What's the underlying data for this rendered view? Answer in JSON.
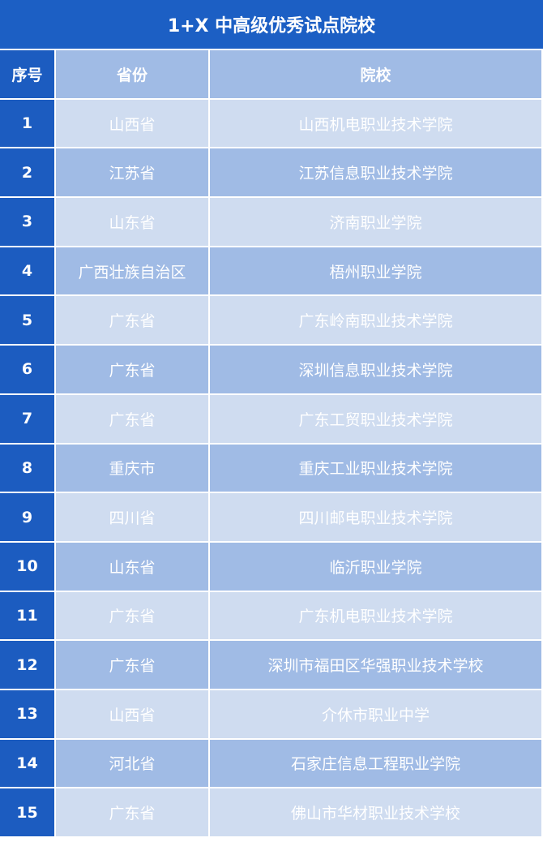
{
  "title": "1+X 中高级优秀试点院校",
  "headers": {
    "index": "序号",
    "province": "省份",
    "school": "院校"
  },
  "colors": {
    "title_bg": "#1c5fc4",
    "index_bg": "#1c5cc0",
    "row_dark": "#a0bbe5",
    "row_light": "#cfdcf0",
    "text": "#ffffff"
  },
  "rows": [
    {
      "index": "1",
      "province": "山西省",
      "school": "山西机电职业技术学院"
    },
    {
      "index": "2",
      "province": "江苏省",
      "school": "江苏信息职业技术学院"
    },
    {
      "index": "3",
      "province": "山东省",
      "school": "济南职业学院"
    },
    {
      "index": "4",
      "province": "广西壮族自治区",
      "school": "梧州职业学院"
    },
    {
      "index": "5",
      "province": "广东省",
      "school": "广东岭南职业技术学院"
    },
    {
      "index": "6",
      "province": "广东省",
      "school": "深圳信息职业技术学院"
    },
    {
      "index": "7",
      "province": "广东省",
      "school": "广东工贸职业技术学院"
    },
    {
      "index": "8",
      "province": "重庆市",
      "school": "重庆工业职业技术学院"
    },
    {
      "index": "9",
      "province": "四川省",
      "school": "四川邮电职业技术学院"
    },
    {
      "index": "10",
      "province": "山东省",
      "school": "临沂职业学院"
    },
    {
      "index": "11",
      "province": "广东省",
      "school": "广东机电职业技术学院"
    },
    {
      "index": "12",
      "province": "广东省",
      "school": "深圳市福田区华强职业技术学校"
    },
    {
      "index": "13",
      "province": "山西省",
      "school": "介休市职业中学"
    },
    {
      "index": "14",
      "province": "河北省",
      "school": "石家庄信息工程职业学院"
    },
    {
      "index": "15",
      "province": "广东省",
      "school": "佛山市华材职业技术学校"
    }
  ]
}
